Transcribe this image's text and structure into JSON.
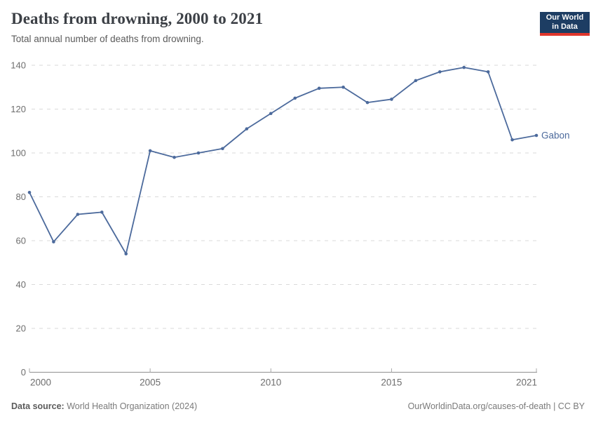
{
  "header": {
    "title": "Deaths from drowning, 2000 to 2021",
    "subtitle": "Total annual number of deaths from drowning.",
    "logo": {
      "line1": "Our World",
      "line2": "in Data"
    }
  },
  "chart_data": {
    "type": "line",
    "title": "Deaths from drowning, 2000 to 2021",
    "subtitle": "Total annual number of deaths from drowning.",
    "xlabel": "",
    "ylabel": "",
    "xlim": [
      2000,
      2021
    ],
    "ylim": [
      0,
      140
    ],
    "x_ticks": [
      2000,
      2005,
      2010,
      2015,
      2021
    ],
    "y_ticks": [
      0,
      20,
      40,
      60,
      80,
      100,
      120,
      140
    ],
    "grid": "horizontal-dashed",
    "legend_position": "end-of-line-label",
    "series": [
      {
        "name": "Gabon",
        "color": "#4C6A9C",
        "x": [
          2000,
          2001,
          2002,
          2003,
          2004,
          2005,
          2006,
          2007,
          2008,
          2009,
          2010,
          2011,
          2012,
          2013,
          2014,
          2015,
          2016,
          2017,
          2018,
          2019,
          2020,
          2021
        ],
        "values": [
          82,
          59.5,
          72,
          73,
          54,
          101,
          98,
          100,
          102,
          111,
          118,
          125,
          129.5,
          130,
          123,
          124.5,
          133,
          137,
          139,
          137,
          106,
          108
        ]
      }
    ]
  },
  "footer": {
    "source_label": "Data source:",
    "source_value": "World Health Organization (2024)",
    "credit": "OurWorldinData.org/causes-of-death | CC BY"
  },
  "colors": {
    "line": "#4C6A9C",
    "grid": "#dadada",
    "axis_line": "#8f8f8f",
    "tick": "#a8a8a8",
    "axis_text": "#6e6e6e"
  }
}
